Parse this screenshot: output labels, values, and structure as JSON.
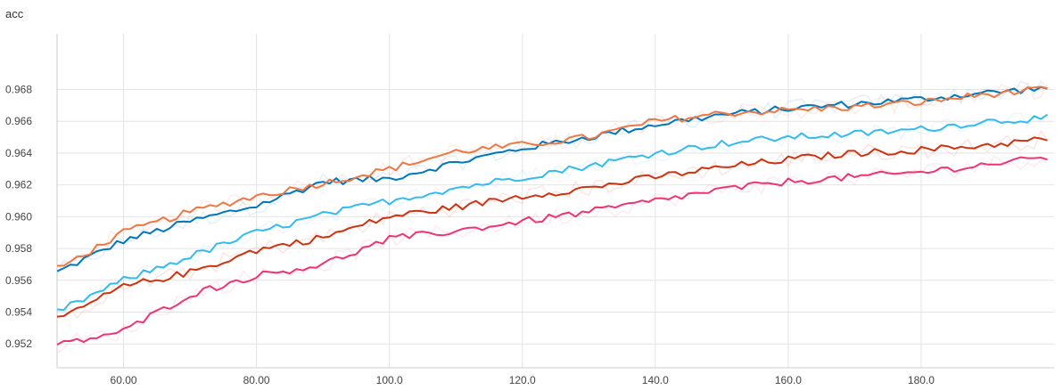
{
  "chart_data": {
    "type": "line",
    "title": "acc",
    "xlim": [
      50,
      200
    ],
    "ylim": [
      0.9505,
      0.9715
    ],
    "x_ticks": [
      60,
      80,
      100,
      120,
      140,
      160,
      180
    ],
    "x_tick_labels": [
      "60.00",
      "80.00",
      "100.0",
      "120.0",
      "140.0",
      "160.0",
      "180.0"
    ],
    "y_ticks": [
      0.952,
      0.954,
      0.956,
      0.958,
      0.96,
      0.962,
      0.964,
      0.966,
      0.968
    ],
    "y_tick_labels": [
      "0.952",
      "0.954",
      "0.956",
      "0.958",
      "0.960",
      "0.962",
      "0.964",
      "0.966",
      "0.968"
    ],
    "grid": true,
    "legend": "none",
    "series": [
      {
        "color": "#0077bb",
        "raw_color": "#a6d8ee",
        "x": [
          50,
          60,
          70,
          80,
          90,
          100,
          110,
          120,
          130,
          140,
          150,
          160,
          170,
          180,
          190,
          199
        ],
        "values": [
          0.9565,
          0.9585,
          0.9597,
          0.9607,
          0.9622,
          0.9624,
          0.9634,
          0.9643,
          0.965,
          0.9658,
          0.9664,
          0.9668,
          0.9671,
          0.9674,
          0.9678,
          0.9681
        ]
      },
      {
        "color": "#ee7744",
        "raw_color": "#f9cbb6",
        "x": [
          50,
          60,
          70,
          80,
          90,
          100,
          110,
          120,
          130,
          140,
          150,
          160,
          170,
          180,
          190,
          199
        ],
        "values": [
          0.9567,
          0.959,
          0.9603,
          0.9613,
          0.9621,
          0.963,
          0.9641,
          0.9645,
          0.965,
          0.966,
          0.9665,
          0.9667,
          0.9669,
          0.9672,
          0.9677,
          0.968
        ]
      },
      {
        "color": "#33bbee",
        "raw_color": "#c2e9f8",
        "x": [
          50,
          60,
          70,
          80,
          90,
          100,
          110,
          120,
          130,
          140,
          150,
          160,
          170,
          180,
          190,
          199
        ],
        "values": [
          0.954,
          0.956,
          0.9575,
          0.959,
          0.9601,
          0.961,
          0.9618,
          0.9625,
          0.9632,
          0.964,
          0.9646,
          0.965,
          0.9652,
          0.9655,
          0.966,
          0.9662
        ]
      },
      {
        "color": "#cc3311",
        "raw_color": "#f2b8aa",
        "x": [
          50,
          60,
          70,
          80,
          90,
          100,
          110,
          120,
          130,
          140,
          150,
          160,
          170,
          180,
          190,
          199
        ],
        "values": [
          0.9535,
          0.9556,
          0.9565,
          0.9579,
          0.9587,
          0.96,
          0.9606,
          0.9613,
          0.9618,
          0.9625,
          0.9631,
          0.9636,
          0.964,
          0.9642,
          0.9645,
          0.9649
        ]
      },
      {
        "color": "#ee3377",
        "raw_color": "#f9c2d6",
        "x": [
          50,
          60,
          70,
          80,
          90,
          100,
          110,
          120,
          130,
          140,
          150,
          160,
          170,
          180,
          190,
          199
        ],
        "values": [
          0.9519,
          0.9528,
          0.9551,
          0.9563,
          0.957,
          0.9586,
          0.9591,
          0.9597,
          0.9603,
          0.961,
          0.9617,
          0.9622,
          0.9625,
          0.9628,
          0.9633,
          0.9637
        ]
      }
    ]
  }
}
